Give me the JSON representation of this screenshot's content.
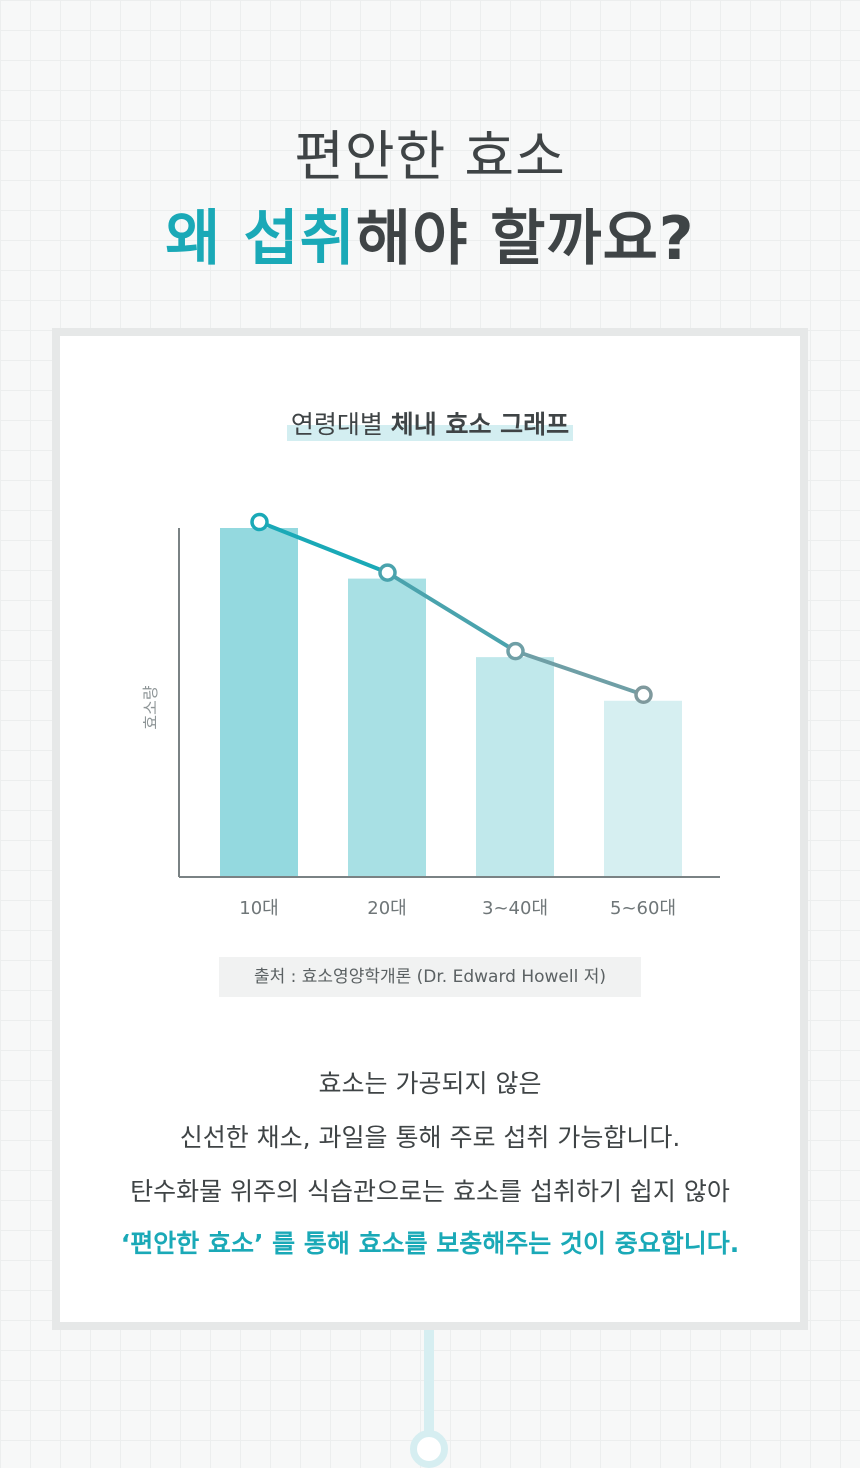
{
  "header": {
    "line1": "편안한 효소",
    "line2_accent": "왜 섭취",
    "line2_rest": "해야 할까요?"
  },
  "chart_title": {
    "normal": "연령대별 ",
    "bold": "체내 효소 그래프"
  },
  "chart_data": {
    "type": "bar",
    "categories": [
      "10대",
      "20대",
      "3~40대",
      "5~60대"
    ],
    "values": [
      100,
      85.5,
      63,
      50.5
    ],
    "ylabel": "효소량",
    "xlabel": "",
    "ylim": [
      0,
      100
    ],
    "grid": false,
    "overlay_line": true,
    "bar_colors": [
      "#94d9df",
      "#a8e0e4",
      "#c0e8eb",
      "#d6eff1"
    ],
    "line_colors": [
      "#1aa9b7",
      "#4aa3ad",
      "#6f9fa6",
      "#7f999d"
    ]
  },
  "source": "출처 : 효소영양학개론 (Dr. Edward Howell 저)",
  "body": {
    "line1": "효소는 가공되지 않은",
    "line2": "신선한 채소, 과일을 통해 주로 섭취 가능합니다.",
    "line3": "탄수화물 위주의 식습관으로는 효소를 섭취하기 쉽지 않아",
    "line4": "‘편안한 효소’ 를 통해 효소를 보충해주는 것이 중요합니다."
  },
  "colors": {
    "accent": "#1aa9b7",
    "text": "#3f4446",
    "card_border": "#e6e8e8"
  }
}
